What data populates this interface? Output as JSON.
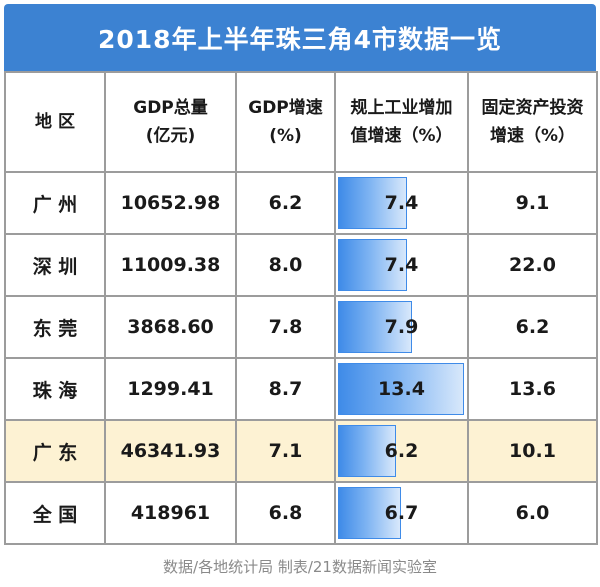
{
  "title": "2018年上半年珠三角4市数据一览",
  "headers": [
    [
      "地 区"
    ],
    [
      "GDP总量",
      "(亿元)"
    ],
    [
      "GDP增速",
      "(%)"
    ],
    [
      "规上工业增加",
      "值增速（%）"
    ],
    [
      "固定资产投资",
      "增速（%）"
    ]
  ],
  "rows": [
    {
      "region": "广 州",
      "gdp": "10652.98",
      "gdp_growth": "6.2",
      "industry_growth": "7.4",
      "industry_value": 7.4,
      "fixed_invest": "9.1"
    },
    {
      "region": "深 圳",
      "gdp": "11009.38",
      "gdp_growth": "8.0",
      "industry_growth": "7.4",
      "industry_value": 7.4,
      "fixed_invest": "22.0"
    },
    {
      "region": "东 莞",
      "gdp": "3868.60",
      "gdp_growth": "7.8",
      "industry_growth": "7.9",
      "industry_value": 7.9,
      "fixed_invest": "6.2"
    },
    {
      "region": "珠 海",
      "gdp": "1299.41",
      "gdp_growth": "8.7",
      "industry_growth": "13.4",
      "industry_value": 13.4,
      "fixed_invest": "13.6"
    },
    {
      "region": "广 东",
      "gdp": "46341.93",
      "gdp_growth": "7.1",
      "industry_growth": "6.2",
      "industry_value": 6.2,
      "fixed_invest": "10.1",
      "highlight": true
    },
    {
      "region": "全 国",
      "gdp": "418961",
      "gdp_growth": "6.8",
      "industry_growth": "6.7",
      "industry_value": 6.7,
      "fixed_invest": "6.0"
    }
  ],
  "bar_max_value": 13.4,
  "source": "数据/各地统计局  制表/21数据新闻实验室",
  "colors": {
    "title_bg": "#3c82d2",
    "bar": "#3f8be8",
    "highlight_row": "#fdf2d3"
  }
}
